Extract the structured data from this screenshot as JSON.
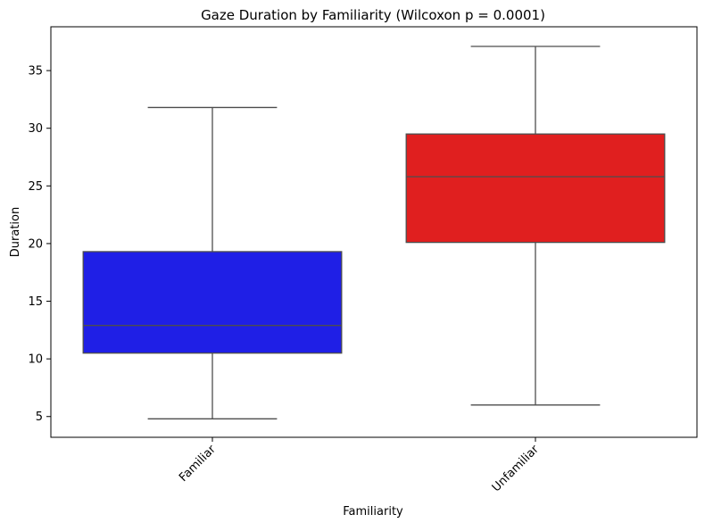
{
  "chart_data": {
    "type": "box",
    "title": "Gaze Duration by Familiarity (Wilcoxon p = 0.0001)",
    "xlabel": "Familiarity",
    "ylabel": "Duration",
    "ylim": [
      3.2,
      38.8
    ],
    "yticks": [
      5,
      10,
      15,
      20,
      25,
      30,
      35
    ],
    "grid": false,
    "categories": [
      "Familiar",
      "Unfamiliar"
    ],
    "boxes": [
      {
        "category": "Familiar",
        "color": "#1f1fe6",
        "whisker_low": 4.8,
        "q1": 10.5,
        "median": 12.9,
        "q3": 19.3,
        "whisker_high": 31.8
      },
      {
        "category": "Unfamiliar",
        "color": "#e01f1f",
        "whisker_low": 6.0,
        "q1": 20.1,
        "median": 25.8,
        "q3": 29.5,
        "whisker_high": 37.1
      }
    ]
  }
}
